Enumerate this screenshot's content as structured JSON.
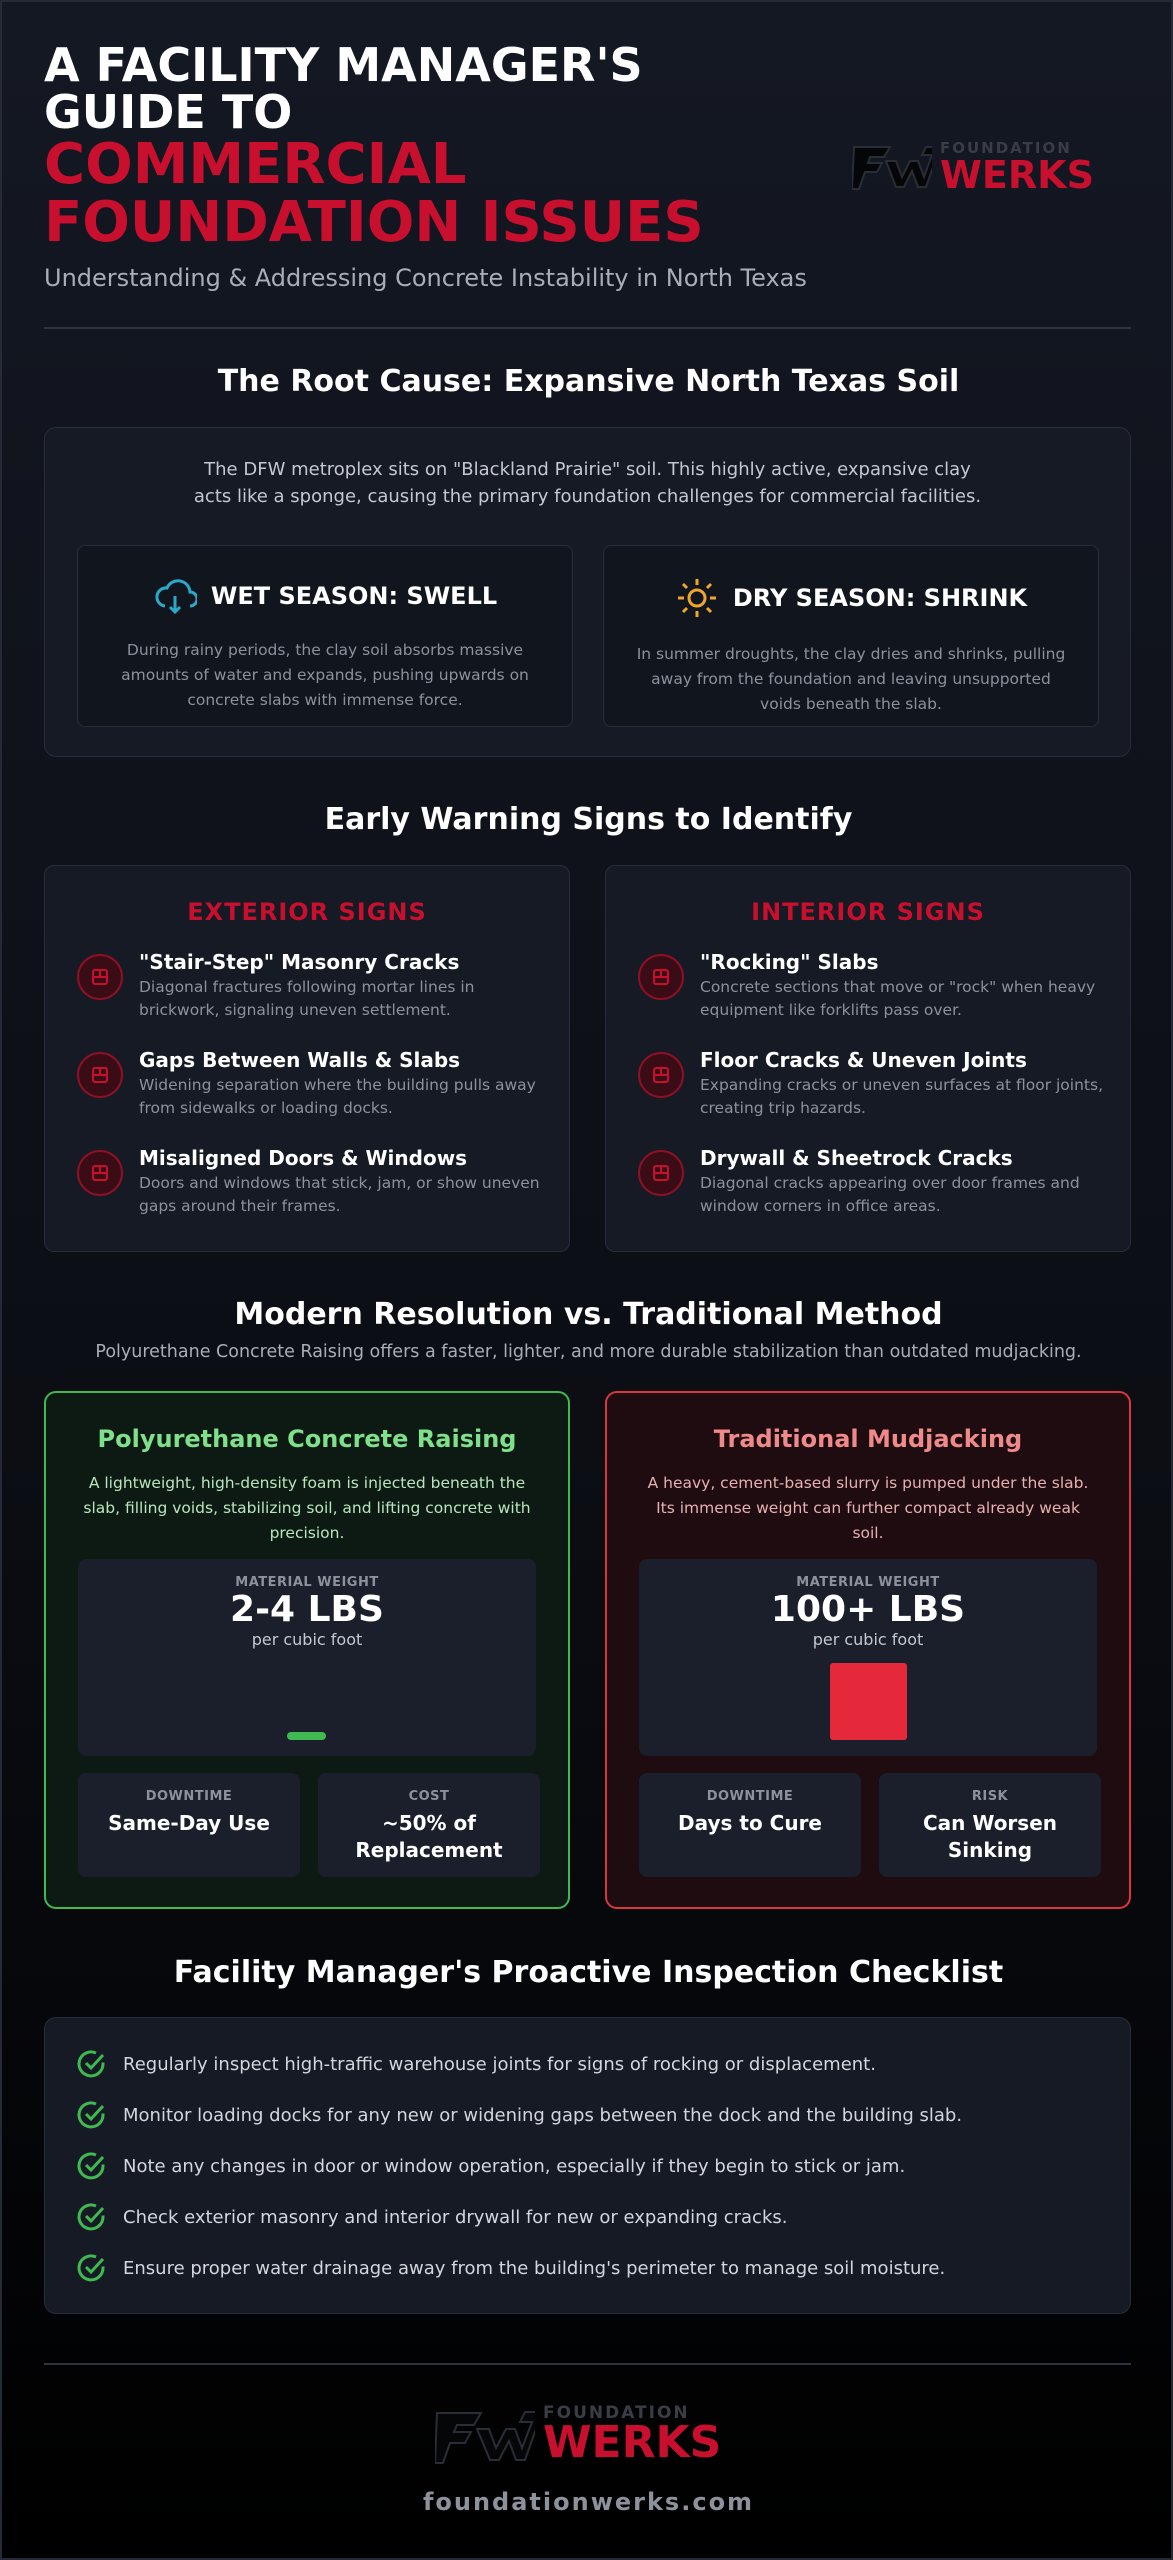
{
  "header": {
    "title_line1": "A FACILITY MANAGER'S GUIDE TO",
    "title_line2": "COMMERCIAL FOUNDATION ISSUES",
    "subtitle": "Understanding & Addressing Concrete Instability in North Texas",
    "logo": {
      "top": "FOUNDATION",
      "bottom": "WERKS"
    }
  },
  "root_cause": {
    "heading": "The Root Cause: Expansive North Texas Soil",
    "intro": "The DFW metroplex sits on \"Blackland Prairie\" soil. This highly active, expansive clay acts like a sponge, causing the primary foundation challenges for commercial facilities.",
    "cards": [
      {
        "title": "WET SEASON: SWELL",
        "text": "During rainy periods, the clay soil absorbs massive amounts of water and expands, pushing upwards on concrete slabs with immense force."
      },
      {
        "title": "DRY SEASON: SHRINK",
        "text": "In summer droughts, the clay dries and shrinks, pulling away from the foundation and leaving unsupported voids beneath the slab."
      }
    ]
  },
  "warning_signs": {
    "heading": "Early Warning Signs to Identify",
    "columns": [
      {
        "title": "EXTERIOR SIGNS",
        "items": [
          {
            "title": "\"Stair-Step\" Masonry Cracks",
            "text": "Diagonal fractures following mortar lines in brickwork, signaling uneven settlement."
          },
          {
            "title": "Gaps Between Walls & Slabs",
            "text": "Widening separation where the building pulls away from sidewalks or loading docks."
          },
          {
            "title": "Misaligned Doors & Windows",
            "text": "Doors and windows that stick, jam, or show uneven gaps around their frames."
          }
        ]
      },
      {
        "title": "INTERIOR SIGNS",
        "items": [
          {
            "title": "\"Rocking\" Slabs",
            "text": "Concrete sections that move or \"rock\" when heavy equipment like forklifts pass over."
          },
          {
            "title": "Floor Cracks & Uneven Joints",
            "text": "Expanding cracks or uneven surfaces at floor joints, creating trip hazards."
          },
          {
            "title": "Drywall & Sheetrock Cracks",
            "text": "Diagonal cracks appearing over door frames and window corners in office areas."
          }
        ]
      }
    ]
  },
  "comparison": {
    "heading": "Modern Resolution vs. Traditional Method",
    "subtitle": "Polyurethane Concrete Raising offers a faster, lighter, and more durable stabilization than outdated mudjacking.",
    "methods": [
      {
        "title": "Polyurethane Concrete Raising",
        "text": "A lightweight, high-density foam is injected beneath the slab, filling voids, stabilizing soil, and lifting concrete with precision.",
        "weight_label": "MATERIAL WEIGHT",
        "weight_value": "2-4 LBS",
        "weight_unit": "per cubic foot",
        "stats": [
          {
            "label": "DOWNTIME",
            "value": "Same-Day Use"
          },
          {
            "label": "COST",
            "value": "~50% of Replacement"
          }
        ]
      },
      {
        "title": "Traditional Mudjacking",
        "text": "A heavy, cement-based slurry is pumped under the slab. Its immense weight can further compact already weak soil.",
        "weight_label": "MATERIAL WEIGHT",
        "weight_value": "100+ LBS",
        "weight_unit": "per cubic foot",
        "stats": [
          {
            "label": "DOWNTIME",
            "value": "Days to Cure"
          },
          {
            "label": "RISK",
            "value": "Can Worsen Sinking"
          }
        ]
      }
    ]
  },
  "checklist": {
    "heading": "Facility Manager's Proactive Inspection Checklist",
    "items": [
      "Regularly inspect high-traffic warehouse joints for signs of rocking or displacement.",
      "Monitor loading docks for any new or widening gaps between the dock and the building slab.",
      "Note any changes in door or window operation, especially if they begin to stick or jam.",
      "Check exterior masonry and interior drywall for new or expanding cracks.",
      "Ensure proper water drainage away from the building's perimeter to manage soil moisture."
    ]
  },
  "footer": {
    "logo": {
      "top": "FOUNDATION",
      "bottom": "WERKS"
    },
    "url": "foundationwerks.com"
  }
}
